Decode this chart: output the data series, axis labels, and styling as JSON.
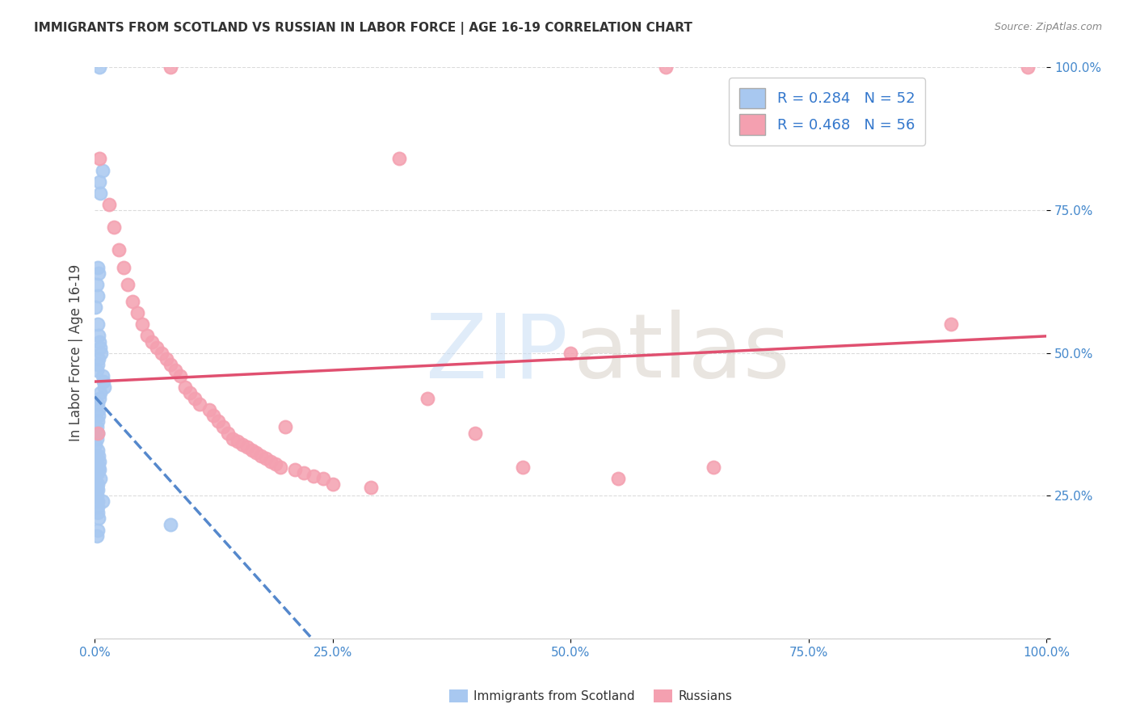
{
  "title": "IMMIGRANTS FROM SCOTLAND VS RUSSIAN IN LABOR FORCE | AGE 16-19 CORRELATION CHART",
  "source": "Source: ZipAtlas.com",
  "ylabel": "In Labor Force | Age 16-19",
  "xlim": [
    0,
    1
  ],
  "ylim": [
    0,
    1
  ],
  "xticks": [
    0,
    0.25,
    0.5,
    0.75,
    1.0
  ],
  "yticks": [
    0,
    0.25,
    0.5,
    0.75,
    1.0
  ],
  "xtick_labels": [
    "0.0%",
    "25.0%",
    "50.0%",
    "75.0%",
    "100.0%"
  ],
  "ytick_labels": [
    "",
    "25.0%",
    "50.0%",
    "75.0%",
    "100.0%"
  ],
  "scotland_R": 0.284,
  "scotland_N": 52,
  "russian_R": 0.468,
  "russian_N": 56,
  "scotland_color": "#a8c8f0",
  "russian_color": "#f4a0b0",
  "scotland_line_color": "#5588cc",
  "russian_line_color": "#e05070",
  "background_color": "#ffffff",
  "grid_color": "#cccccc",
  "tick_label_color_y": "#4488cc",
  "tick_label_color_x": "#4488cc",
  "scotland_x": [
    0.005,
    0.008,
    0.005,
    0.006,
    0.003,
    0.004,
    0.002,
    0.003,
    0.001,
    0.003,
    0.004,
    0.005,
    0.006,
    0.007,
    0.004,
    0.003,
    0.002,
    0.008,
    0.009,
    0.01,
    0.006,
    0.005,
    0.003,
    0.004,
    0.004,
    0.003,
    0.002,
    0.003,
    0.002,
    0.001,
    0.003,
    0.004,
    0.002,
    0.005,
    0.003,
    0.004,
    0.005,
    0.003,
    0.006,
    0.003,
    0.002,
    0.003,
    0.001,
    0.002,
    0.003,
    0.003,
    0.008,
    0.003,
    0.004,
    0.08,
    0.003,
    0.002
  ],
  "scotland_y": [
    1.0,
    0.82,
    0.8,
    0.78,
    0.65,
    0.64,
    0.62,
    0.6,
    0.58,
    0.55,
    0.53,
    0.52,
    0.51,
    0.5,
    0.49,
    0.48,
    0.47,
    0.46,
    0.45,
    0.44,
    0.43,
    0.42,
    0.41,
    0.4,
    0.39,
    0.38,
    0.37,
    0.36,
    0.35,
    0.34,
    0.33,
    0.32,
    0.315,
    0.31,
    0.305,
    0.3,
    0.295,
    0.29,
    0.28,
    0.27,
    0.265,
    0.26,
    0.255,
    0.25,
    0.24,
    0.23,
    0.24,
    0.22,
    0.21,
    0.2,
    0.19,
    0.18
  ],
  "russian_x": [
    0.003,
    0.08,
    0.32,
    0.005,
    0.015,
    0.02,
    0.025,
    0.03,
    0.035,
    0.04,
    0.045,
    0.05,
    0.055,
    0.06,
    0.065,
    0.07,
    0.075,
    0.08,
    0.085,
    0.09,
    0.095,
    0.1,
    0.105,
    0.11,
    0.12,
    0.125,
    0.13,
    0.135,
    0.14,
    0.145,
    0.15,
    0.155,
    0.16,
    0.165,
    0.17,
    0.175,
    0.18,
    0.185,
    0.19,
    0.195,
    0.2,
    0.21,
    0.22,
    0.23,
    0.24,
    0.25,
    0.29,
    0.35,
    0.4,
    0.45,
    0.5,
    0.55,
    0.9,
    0.6,
    0.65,
    0.98
  ],
  "russian_y": [
    0.36,
    1.0,
    0.84,
    0.84,
    0.76,
    0.72,
    0.68,
    0.65,
    0.62,
    0.59,
    0.57,
    0.55,
    0.53,
    0.52,
    0.51,
    0.5,
    0.49,
    0.48,
    0.47,
    0.46,
    0.44,
    0.43,
    0.42,
    0.41,
    0.4,
    0.39,
    0.38,
    0.37,
    0.36,
    0.35,
    0.345,
    0.34,
    0.335,
    0.33,
    0.325,
    0.32,
    0.315,
    0.31,
    0.305,
    0.3,
    0.37,
    0.295,
    0.29,
    0.285,
    0.28,
    0.27,
    0.265,
    0.42,
    0.36,
    0.3,
    0.5,
    0.28,
    0.55,
    1.0,
    0.3,
    1.0
  ]
}
